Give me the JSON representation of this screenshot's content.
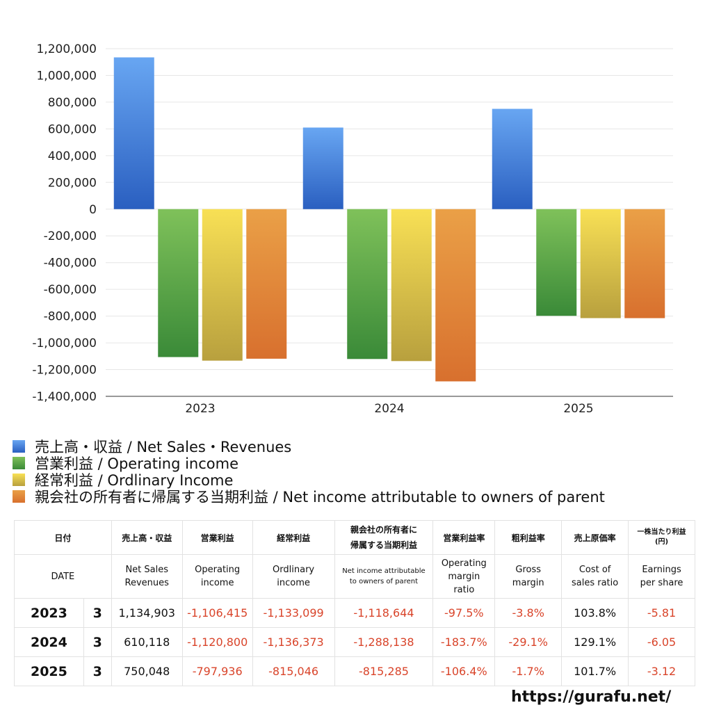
{
  "chart_data": {
    "type": "bar",
    "categories": [
      "2023",
      "2024",
      "2025"
    ],
    "series": [
      {
        "name": "売上高・収益 / Net Sales・Revenues",
        "values": [
          1134903,
          610118,
          750048
        ],
        "color": "#3f7fe0"
      },
      {
        "name": "営業利益 / Operating income",
        "values": [
          -1106415,
          -1120800,
          -797936
        ],
        "color": "#5aa545"
      },
      {
        "name": "経常利益 / Ordlinary Income",
        "values": [
          -1133099,
          -1136373,
          -815046
        ],
        "color": "#e0c84a"
      },
      {
        "name": "親会社の所有者に帰属する当期利益 / Net income attributable to owners of parent",
        "values": [
          -1118644,
          -1288138,
          -815285
        ],
        "color": "#e08a3a"
      }
    ],
    "ylim": [
      -1400000,
      1200000
    ],
    "yticks": [
      1200000,
      1000000,
      800000,
      600000,
      400000,
      200000,
      0,
      -200000,
      -400000,
      -600000,
      -800000,
      -1000000,
      -1200000,
      -1400000
    ],
    "ytick_labels": [
      "1,200,000",
      "1,000,000",
      "800,000",
      "600,000",
      "400,000",
      "200,000",
      "0",
      "-200,000",
      "-400,000",
      "-600,000",
      "-800,000",
      "-1,000,000",
      "-1,200,000",
      "-1,400,000"
    ],
    "grid": true,
    "legend_position": "bottom"
  },
  "legend": [
    {
      "label": "売上高・収益 / Net Sales・Revenues"
    },
    {
      "label": "営業利益 / Operating income"
    },
    {
      "label": "経常利益 / Ordlinary Income"
    },
    {
      "label": "親会社の所有者に帰属する当期利益 / Net income attributable to owners of parent"
    }
  ],
  "table": {
    "header_jp": {
      "date": "日付",
      "sales": "売上高・収益",
      "op": "営業利益",
      "ord": "経常利益",
      "net_1": "親会社の所有者に",
      "net_2": "帰属する当期利益",
      "opm": "営業利益率",
      "gm": "粗利益率",
      "cogs": "売上原価率",
      "eps_1": "一株当たり利益",
      "eps_2": "(円)"
    },
    "header_en": {
      "date": "DATE",
      "sales_1": "Net Sales",
      "sales_2": "Revenues",
      "op_1": "Operating",
      "op_2": "income",
      "ord_1": "Ordlinary",
      "ord_2": "income",
      "net_1": "Net income attributable",
      "net_2": "to owners of parent",
      "opm_1": "Operating",
      "opm_2": "margin",
      "opm_3": "ratio",
      "gm_1": "Gross",
      "gm_2": "margin",
      "cogs_1": "Cost of",
      "cogs_2": "sales ratio",
      "eps_1": "Earnings",
      "eps_2": "per share"
    },
    "rows": [
      {
        "year": "2023",
        "month": "3",
        "sales": "1,134,903",
        "op": "-1,106,415",
        "ord": "-1,133,099",
        "net": "-1,118,644",
        "opm": "-97.5%",
        "gm": "-3.8%",
        "cogs": "103.8%",
        "eps": "-5.81"
      },
      {
        "year": "2024",
        "month": "3",
        "sales": "610,118",
        "op": "-1,120,800",
        "ord": "-1,136,373",
        "net": "-1,288,138",
        "opm": "-183.7%",
        "gm": "-29.1%",
        "cogs": "129.1%",
        "eps": "-6.05"
      },
      {
        "year": "2025",
        "month": "3",
        "sales": "750,048",
        "op": "-797,936",
        "ord": "-815,046",
        "net": "-815,285",
        "opm": "-106.4%",
        "gm": "-1.7%",
        "cogs": "101.7%",
        "eps": "-3.12"
      }
    ]
  },
  "site": "https://gurafu.net/"
}
